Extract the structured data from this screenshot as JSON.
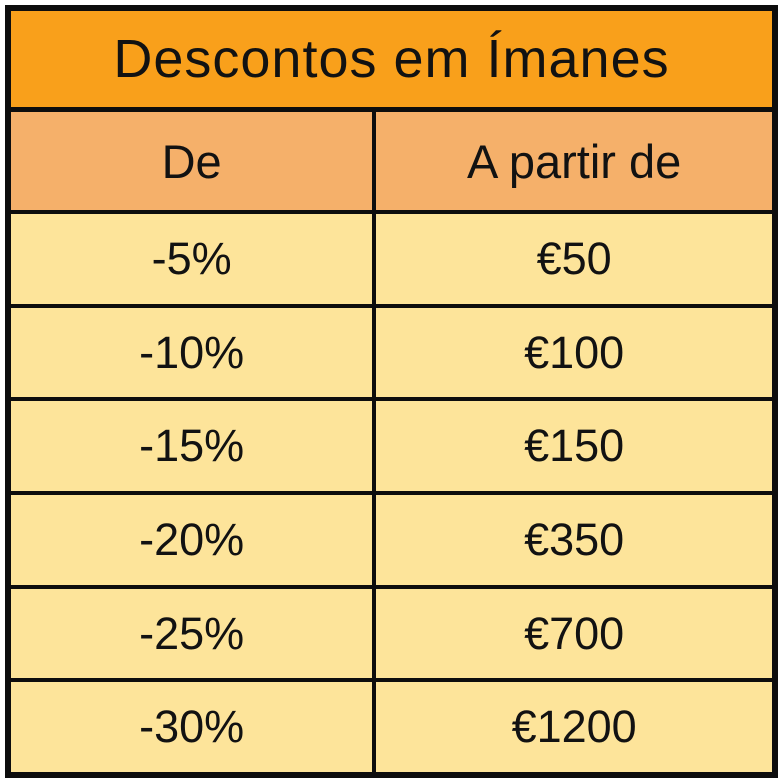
{
  "chart_data": {
    "type": "table",
    "title": "Descontos em Ímanes",
    "columns": [
      "De",
      "A partir de"
    ],
    "rows": [
      [
        "-5%",
        "€50"
      ],
      [
        "-10%",
        "€100"
      ],
      [
        "-15%",
        "€150"
      ],
      [
        "-20%",
        "€350"
      ],
      [
        "-25%",
        "€700"
      ],
      [
        "-30%",
        "€1200"
      ]
    ],
    "notes": "Discount tiers table: column 1 = discount percentage, column 2 = minimum purchase amount in euros"
  },
  "colors": {
    "title_bg": "#F9A01B",
    "header_bg": "#F5B06A",
    "row_bg": "#FDE49A",
    "border": "#0d0d0d"
  }
}
